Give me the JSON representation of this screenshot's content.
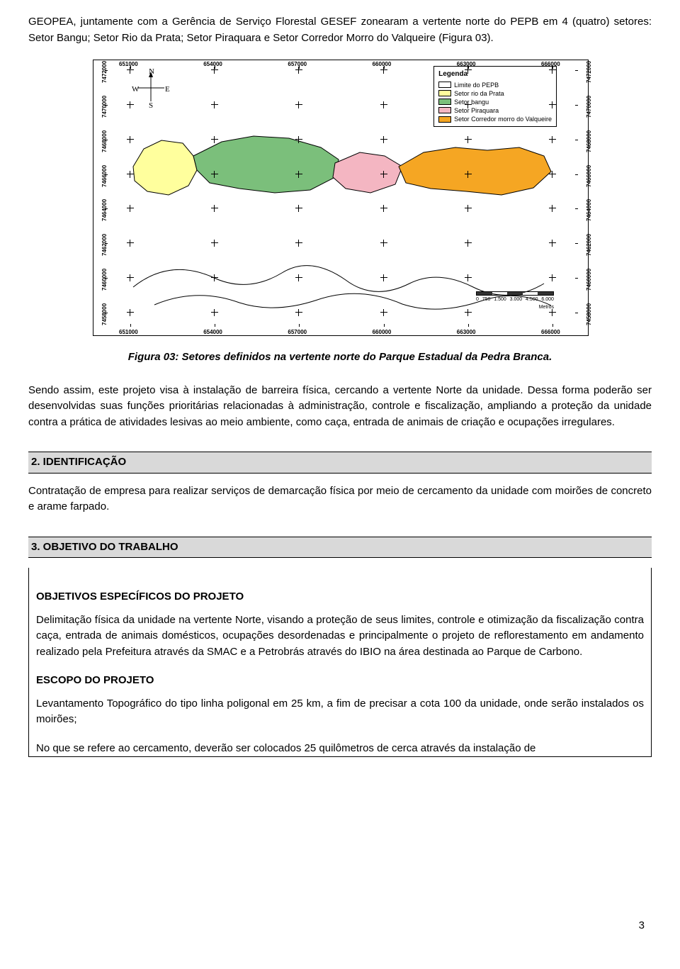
{
  "colors": {
    "text": "#000000",
    "heading_bg": "#d9d9d9",
    "limite": "#ffffff",
    "rio_prata": "#ffff9d",
    "bangu": "#7bbf7b",
    "piraquara": "#f4b6c2",
    "corredor": "#f5a623"
  },
  "intro": {
    "p1": "GEOPEA, juntamente com a Gerência de Serviço Florestal GESEF zonearam a vertente norte do PEPB em 4 (quatro) setores: Setor Bangu; Setor Rio da Prata; Setor Piraquara e Setor Corredor Morro do Valqueire (Figura 03)."
  },
  "figure": {
    "caption": "Figura 03: Setores definidos na vertente norte do Parque Estadual da Pedra Branca.",
    "compass": {
      "N": "N",
      "E": "E",
      "S": "S",
      "W": "W"
    },
    "x_ticks": [
      "651000",
      "654000",
      "657000",
      "660000",
      "663000",
      "666000"
    ],
    "y_ticks": [
      "7458000",
      "7460000",
      "7462000",
      "7464000",
      "7466000",
      "7468000",
      "7470000",
      "7472000"
    ],
    "legend": {
      "title": "Legenda",
      "items": [
        {
          "label": "Limite do PEPB",
          "color": "#ffffff"
        },
        {
          "label": "Setor rio da Prata",
          "color": "#ffff9d"
        },
        {
          "label": "Setor bangu",
          "color": "#7bbf7b"
        },
        {
          "label": "Setor Piraquara",
          "color": "#f4b6c2"
        },
        {
          "label": "Setor Corredor morro do Valqueire",
          "color": "#f5a623"
        }
      ]
    },
    "scale": {
      "labels": [
        "0",
        "750",
        "1.500",
        "3.000",
        "4.500",
        "6.000"
      ],
      "unit": "Metros"
    }
  },
  "after_fig": {
    "p1": "Sendo assim, este projeto visa à instalação de barreira física, cercando a vertente Norte da unidade. Dessa forma poderão ser desenvolvidas suas funções prioritárias relacionadas à administração, controle e fiscalização, ampliando a proteção da unidade contra a prática de atividades lesivas ao meio ambiente, como caça, entrada de animais de criação e ocupações irregulares."
  },
  "sec2": {
    "heading": "2. IDENTIFICAÇÃO",
    "p1": "Contratação de empresa para realizar serviços de demarcação física por meio de cercamento da unidade com moirões de concreto e arame farpado."
  },
  "sec3": {
    "heading": "3. OBJETIVO DO TRABALHO",
    "sub1": "OBJETIVOS ESPECÍFICOS DO PROJETO",
    "p1": "Delimitação física da unidade na vertente Norte, visando a proteção de seus limites, controle e otimização da fiscalização contra caça, entrada de animais domésticos, ocupações desordenadas e principalmente o projeto de reflorestamento em andamento realizado pela Prefeitura através da SMAC e a Petrobrás através do IBIO na área destinada ao Parque de Carbono.",
    "sub2": "ESCOPO DO PROJETO",
    "p2": "Levantamento Topográfico do tipo linha poligonal em 25 km, a fim de precisar a cota 100 da unidade, onde serão instalados os moirões;",
    "p3": "No que se refere ao cercamento, deverão ser colocados 25 quilômetros de cerca através da instalação de"
  },
  "page_number": "3"
}
